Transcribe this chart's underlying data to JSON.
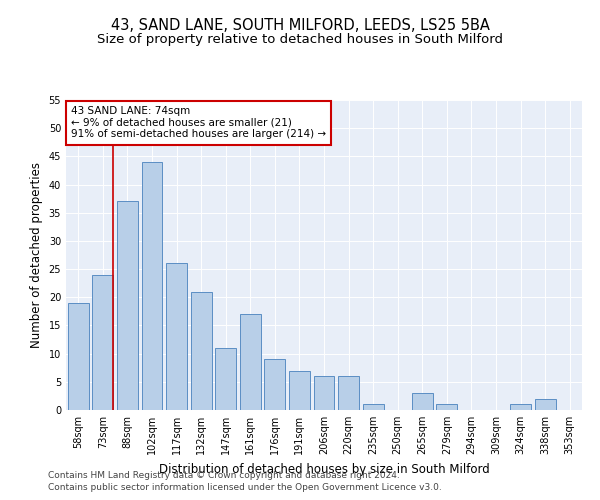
{
  "title1": "43, SAND LANE, SOUTH MILFORD, LEEDS, LS25 5BA",
  "title2": "Size of property relative to detached houses in South Milford",
  "xlabel": "Distribution of detached houses by size in South Milford",
  "ylabel": "Number of detached properties",
  "categories": [
    "58sqm",
    "73sqm",
    "88sqm",
    "102sqm",
    "117sqm",
    "132sqm",
    "147sqm",
    "161sqm",
    "176sqm",
    "191sqm",
    "206sqm",
    "220sqm",
    "235sqm",
    "250sqm",
    "265sqm",
    "279sqm",
    "294sqm",
    "309sqm",
    "324sqm",
    "338sqm",
    "353sqm"
  ],
  "values": [
    19,
    24,
    37,
    44,
    26,
    21,
    11,
    17,
    9,
    7,
    6,
    6,
    1,
    0,
    3,
    1,
    0,
    0,
    1,
    2,
    0
  ],
  "bar_color": "#b8cfe8",
  "bar_edge_color": "#5b8ec4",
  "vline_x": 1.42,
  "vline_color": "#cc0000",
  "annotation_text": "43 SAND LANE: 74sqm\n← 9% of detached houses are smaller (21)\n91% of semi-detached houses are larger (214) →",
  "annotation_box_color": "#ffffff",
  "annotation_box_edge": "#cc0000",
  "ylim": [
    0,
    55
  ],
  "yticks": [
    0,
    5,
    10,
    15,
    20,
    25,
    30,
    35,
    40,
    45,
    50,
    55
  ],
  "bg_color": "#e8eef8",
  "footer1": "Contains HM Land Registry data © Crown copyright and database right 2024.",
  "footer2": "Contains public sector information licensed under the Open Government Licence v3.0.",
  "title1_fontsize": 10.5,
  "title2_fontsize": 9.5,
  "xlabel_fontsize": 8.5,
  "ylabel_fontsize": 8.5,
  "tick_fontsize": 7,
  "footer_fontsize": 6.5,
  "ann_fontsize": 7.5
}
